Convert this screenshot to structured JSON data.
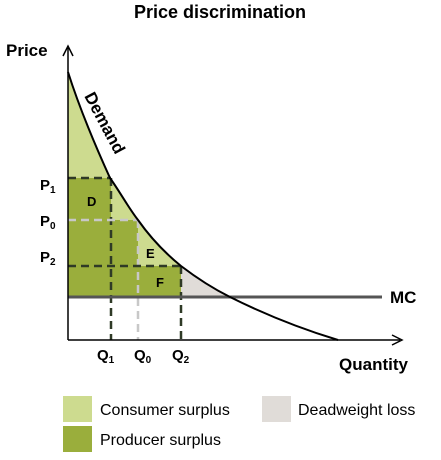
{
  "title": "Price discrimination",
  "axes": {
    "y_label": "Price",
    "x_label": "Quantity"
  },
  "curves": {
    "demand_label": "Demand",
    "mc_label": "MC"
  },
  "price_ticks": [
    {
      "main": "P",
      "sub": "1"
    },
    {
      "main": "P",
      "sub": "0"
    },
    {
      "main": "P",
      "sub": "2"
    }
  ],
  "quantity_ticks": [
    {
      "main": "Q",
      "sub": "1"
    },
    {
      "main": "Q",
      "sub": "0"
    },
    {
      "main": "Q",
      "sub": "2"
    }
  ],
  "regions": {
    "d": "D",
    "e": "E",
    "f": "F"
  },
  "legend": {
    "consumer_surplus": "Consumer surplus",
    "producer_surplus": "Producer surplus",
    "deadweight_loss": "Deadweight loss"
  },
  "colors": {
    "consumer_surplus": "#cddb8f",
    "producer_surplus": "#9aae3c",
    "deadweight_loss": "#e0dcd8",
    "axis": "#000000",
    "mc_line": "#555555",
    "dashed_dark": "#2f3a26",
    "dashed_light": "#c8c8c8"
  }
}
